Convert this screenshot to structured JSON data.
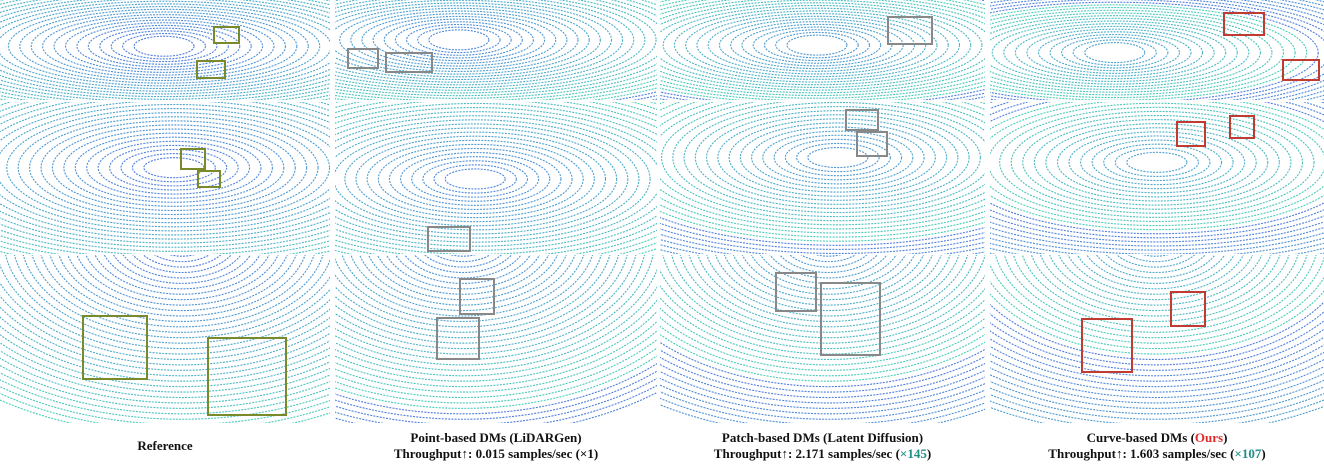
{
  "columns": [
    {
      "caption": [
        [
          {
            "text": "Reference"
          }
        ]
      ]
    },
    {
      "caption": [
        [
          {
            "text": "Point-based DMs (LiDARGen)"
          }
        ],
        [
          {
            "text": "Throughput↑: 0.015 samples/sec (×1)"
          }
        ]
      ]
    },
    {
      "caption": [
        [
          {
            "text": "Patch-based DMs (Latent Diffusion)"
          }
        ],
        [
          {
            "text": "Throughput↑: 2.171 samples/sec ("
          },
          {
            "text": "×145",
            "color": "#1f8f86"
          },
          {
            "text": ")"
          }
        ]
      ]
    },
    {
      "caption": [
        [
          {
            "text": "Curve-based DMs ("
          },
          {
            "text": "Ours",
            "color": "#e02a2a"
          },
          {
            "text": ")"
          }
        ],
        [
          {
            "text": "Throughput↑: 1.603 samples/sec ("
          },
          {
            "text": "×107",
            "color": "#1f8f86"
          },
          {
            "text": ")"
          }
        ]
      ]
    }
  ]
}
